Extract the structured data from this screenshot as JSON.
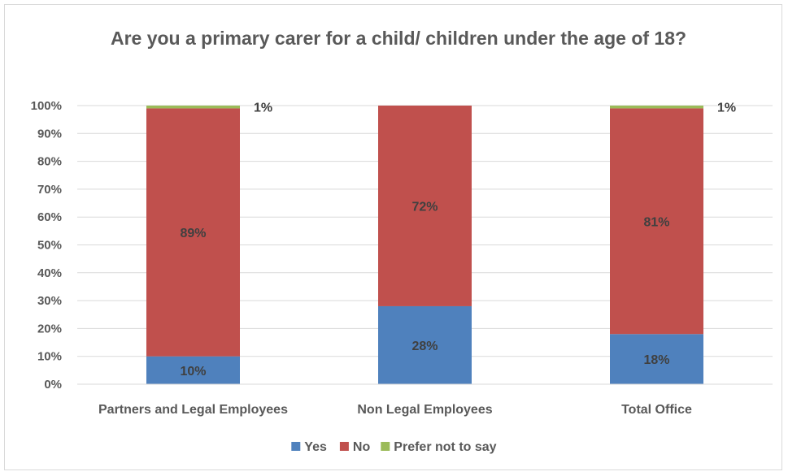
{
  "chart_data": {
    "type": "bar",
    "stacked": true,
    "title": "Are you a primary carer for a child/ children under the age of 18?",
    "categories": [
      "Partners and Legal Employees",
      "Non Legal Employees",
      "Total Office"
    ],
    "series": [
      {
        "name": "Yes",
        "color": "#4f81bd",
        "values": [
          10,
          28,
          18
        ]
      },
      {
        "name": "No",
        "color": "#c0504d",
        "values": [
          89,
          72,
          81
        ]
      },
      {
        "name": "Prefer not to say",
        "color": "#9bbb59",
        "values": [
          1,
          0,
          1
        ]
      }
    ],
    "data_labels": [
      [
        "10%",
        "89%",
        "1%"
      ],
      [
        "28%",
        "72%",
        ""
      ],
      [
        "18%",
        "81%",
        "1%"
      ]
    ],
    "yticks": [
      "0%",
      "10%",
      "20%",
      "30%",
      "40%",
      "50%",
      "60%",
      "70%",
      "80%",
      "90%",
      "100%"
    ],
    "ylim": [
      0,
      100
    ],
    "grid": true,
    "legend": "bottom"
  }
}
